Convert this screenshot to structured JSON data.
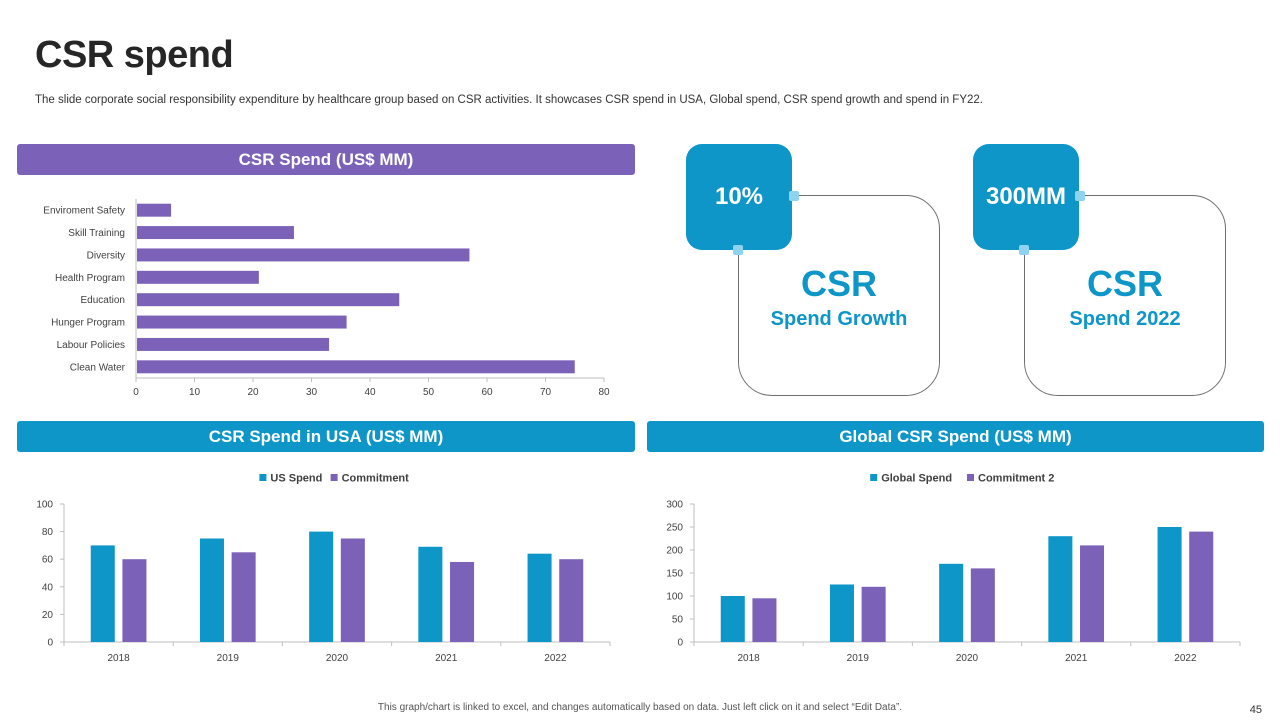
{
  "title": "CSR spend",
  "subtitle": "The slide corporate social responsibility expenditure by healthcare group based on CSR activities. It showcases CSR spend in USA, Global spend, CSR spend growth and spend in FY22.",
  "banners": {
    "csr_spend": "CSR Spend (US$ MM)",
    "usa": "CSR Spend in USA (US$ MM)",
    "global": "Global CSR Spend (US$ MM)"
  },
  "kpis": [
    {
      "value": "10%",
      "line1": "CSR",
      "line2": "Spend Growth"
    },
    {
      "value": "300MM",
      "line1": "CSR",
      "line2": "Spend 2022"
    }
  ],
  "colors": {
    "purple": "#7b62b8",
    "blue": "#0e96c8"
  },
  "chart_data": [
    {
      "type": "bar",
      "orientation": "horizontal",
      "title": "CSR Spend (US$ MM)",
      "categories": [
        "Enviroment Safety",
        "Skill Training",
        "Diversity",
        "Health Program",
        "Education",
        "Hunger Program",
        "Labour Policies",
        "Clean Water"
      ],
      "values": [
        6,
        27,
        57,
        21,
        45,
        36,
        33,
        75
      ],
      "xlim": [
        0,
        80
      ],
      "xticks": [
        0,
        10,
        20,
        30,
        40,
        50,
        60,
        70,
        80
      ]
    },
    {
      "type": "bar",
      "title": "CSR Spend in USA (US$ MM)",
      "categories": [
        "2018",
        "2019",
        "2020",
        "2021",
        "2022"
      ],
      "series": [
        {
          "name": "US Spend",
          "values": [
            70,
            75,
            80,
            69,
            64
          ]
        },
        {
          "name": "Commitment",
          "values": [
            60,
            65,
            75,
            58,
            60
          ]
        }
      ],
      "ylim": [
        0,
        100
      ],
      "yticks": [
        0,
        20,
        40,
        60,
        80,
        100
      ],
      "legend": "top-center"
    },
    {
      "type": "bar",
      "title": "Global CSR Spend (US$ MM)",
      "categories": [
        "2018",
        "2019",
        "2020",
        "2021",
        "2022"
      ],
      "series": [
        {
          "name": "Global Spend",
          "values": [
            100,
            125,
            170,
            230,
            250
          ]
        },
        {
          "name": "Commitment 2",
          "values": [
            95,
            120,
            160,
            210,
            240
          ]
        }
      ],
      "ylim": [
        0,
        300
      ],
      "yticks": [
        0,
        50,
        100,
        150,
        200,
        250,
        300
      ],
      "legend": "top-center"
    }
  ],
  "footnote": "This graph/chart is linked to excel, and changes automatically based on data. Just left click on it and select “Edit Data”.",
  "page_number": "45"
}
